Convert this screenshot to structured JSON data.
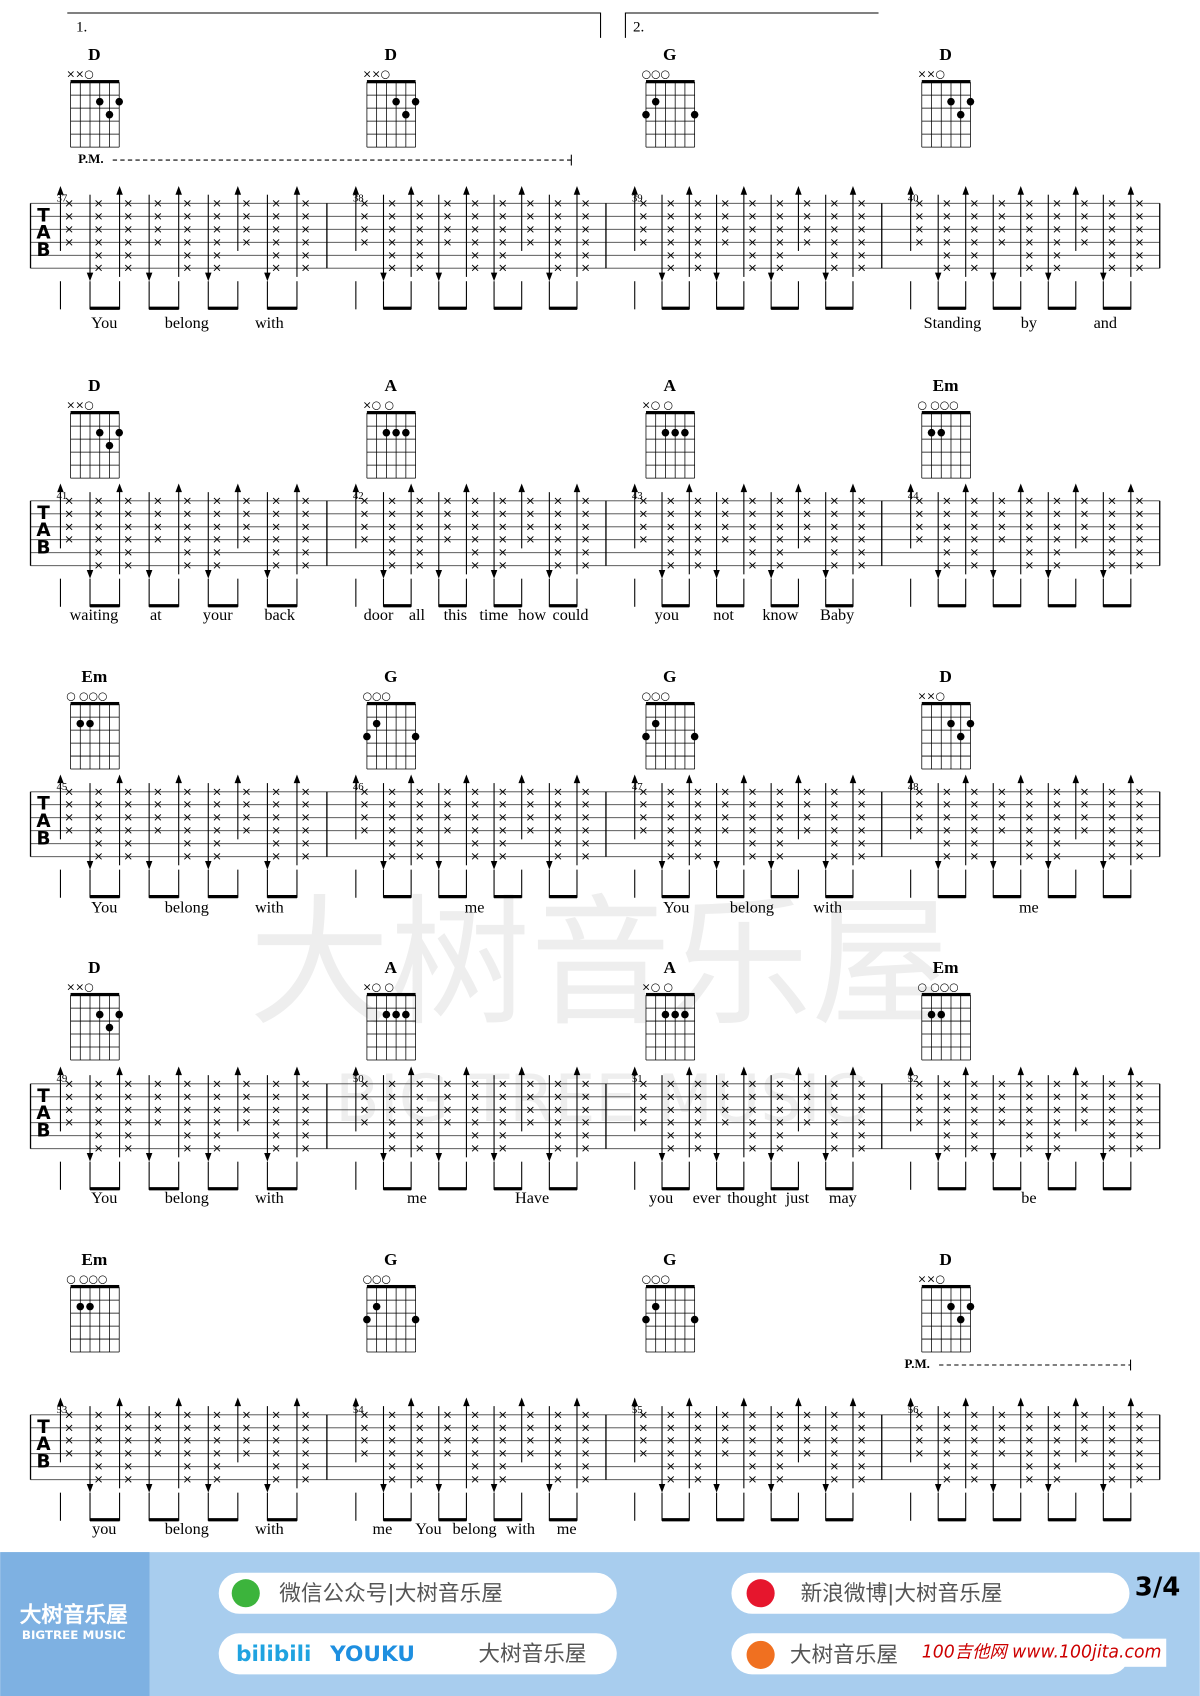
{
  "voltas": [
    "1.",
    "2."
  ],
  "palm_mutes": [
    "P.M.",
    "P.M."
  ],
  "tab_clef": [
    "T",
    "A",
    "B"
  ],
  "systems": [
    {
      "measures": [
        {
          "number": 37,
          "chord": "D",
          "open": "××○",
          "lyrics": [
            "You",
            "belong",
            "with"
          ]
        },
        {
          "number": 38,
          "chord": "D",
          "open": "××○",
          "lyrics": []
        },
        {
          "number": 39,
          "chord": "G",
          "open": "○○○",
          "lyrics": []
        },
        {
          "number": 40,
          "chord": "D",
          "open": "××○",
          "lyrics": [
            "Standing",
            "by",
            "and"
          ]
        }
      ]
    },
    {
      "measures": [
        {
          "number": 41,
          "chord": "D",
          "open": "××○",
          "lyrics": [
            "waiting",
            "at",
            "your",
            "back"
          ]
        },
        {
          "number": 42,
          "chord": "A",
          "open": "×○    ○",
          "lyrics": [
            "door",
            "all",
            "this",
            "time",
            "how",
            "could"
          ]
        },
        {
          "number": 43,
          "chord": "A",
          "open": "×○    ○",
          "lyrics": [
            "you",
            "not",
            "know",
            "Baby"
          ]
        },
        {
          "number": 44,
          "chord": "Em",
          "open": "○  ○○○",
          "lyrics": []
        }
      ]
    },
    {
      "measures": [
        {
          "number": 45,
          "chord": "Em",
          "open": "○  ○○○",
          "lyrics": [
            "You",
            "belong",
            "with"
          ]
        },
        {
          "number": 46,
          "chord": "G",
          "open": "○○○",
          "lyrics": [
            "me"
          ]
        },
        {
          "number": 47,
          "chord": "G",
          "open": "○○○",
          "lyrics": [
            "You",
            "belong",
            "with"
          ]
        },
        {
          "number": 48,
          "chord": "D",
          "open": "××○",
          "lyrics": [
            "me"
          ]
        }
      ]
    },
    {
      "measures": [
        {
          "number": 49,
          "chord": "D",
          "open": "××○",
          "lyrics": [
            "You",
            "belong",
            "with"
          ]
        },
        {
          "number": 50,
          "chord": "A",
          "open": "×○    ○",
          "lyrics": [
            "me",
            "Have"
          ]
        },
        {
          "number": 51,
          "chord": "A",
          "open": "×○    ○",
          "lyrics": [
            "you",
            "ever",
            "thought",
            "just",
            "may"
          ]
        },
        {
          "number": 52,
          "chord": "Em",
          "open": "○  ○○○",
          "lyrics": [
            "be"
          ]
        }
      ]
    },
    {
      "measures": [
        {
          "number": 53,
          "chord": "Em",
          "open": "○  ○○○",
          "lyrics": [
            "you",
            "belong",
            "with"
          ]
        },
        {
          "number": 54,
          "chord": "G",
          "open": "○○○",
          "lyrics": [
            "me",
            "You",
            "belong",
            "with",
            "me"
          ]
        },
        {
          "number": 55,
          "chord": "G",
          "open": "○○○",
          "lyrics": []
        },
        {
          "number": 56,
          "chord": "D",
          "open": "××○",
          "lyrics": []
        }
      ]
    }
  ],
  "watermark": {
    "cn": "大树音乐屋",
    "en": "BIG TREE MUSIC"
  },
  "footer": {
    "brand_cn": "大树音乐屋",
    "brand_en": "BIGTREE MUSIC",
    "wechat": "微信公众号|大树音乐屋",
    "weibo": "新浪微博|大树音乐屋",
    "bilibili": "bilibili",
    "youku": "YOUKU",
    "video_name": "大树音乐屋",
    "taobao": "大树音乐屋",
    "site": "100吉他网 www.100jita.com",
    "page": "3/4"
  }
}
